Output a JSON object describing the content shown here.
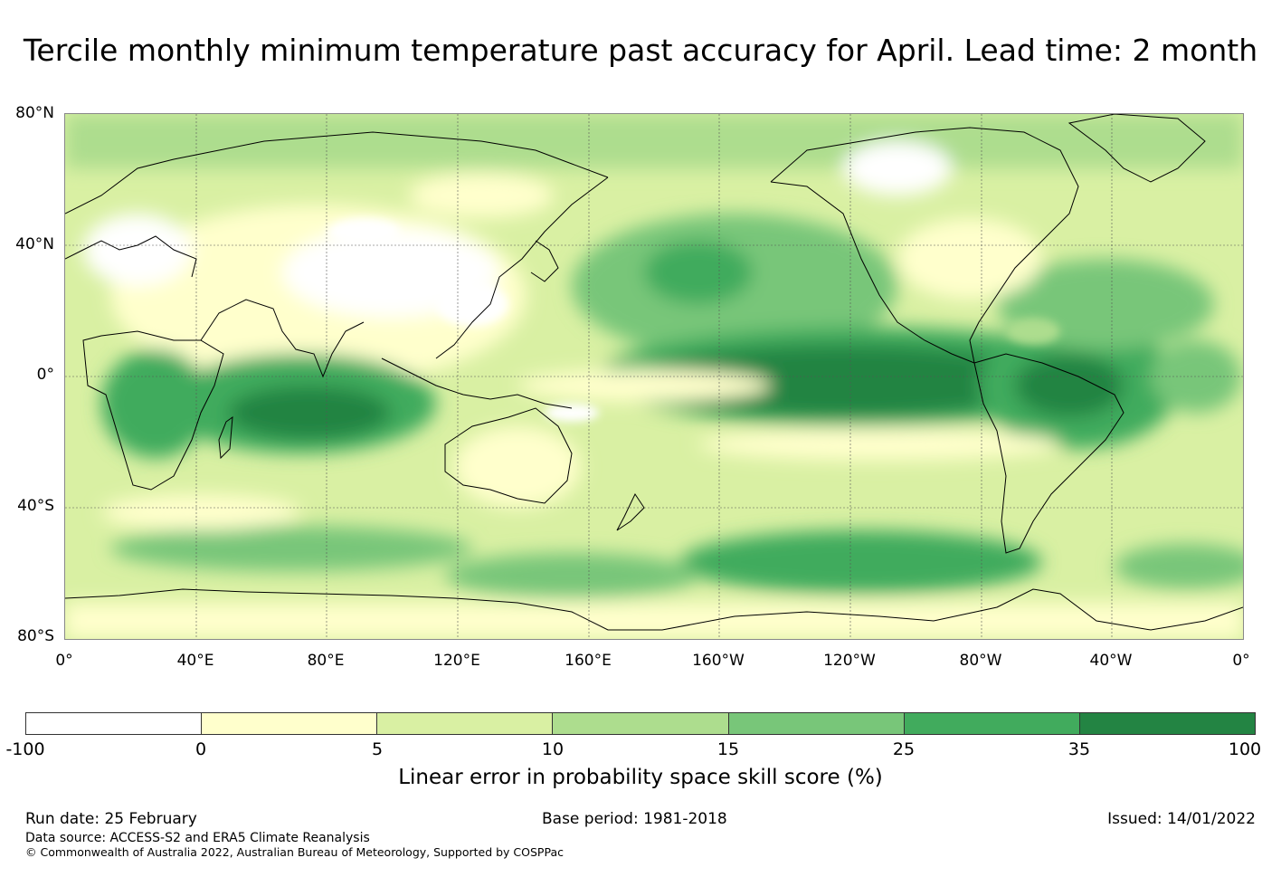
{
  "title": "Tercile monthly minimum temperature past accuracy for April. Lead time: 2 month",
  "map": {
    "lat_labels": [
      "80°N",
      "40°N",
      "0°",
      "40°S",
      "80°S"
    ],
    "lon_labels": [
      "0°",
      "40°E",
      "80°E",
      "120°E",
      "160°E",
      "160°W",
      "120°W",
      "80°W",
      "40°W",
      "0°"
    ]
  },
  "colorbar": {
    "ticks": [
      "-100",
      "0",
      "5",
      "10",
      "15",
      "25",
      "35",
      "100"
    ],
    "colors": [
      "#ffffff",
      "#ffffcc",
      "#d9f0a3",
      "#addd8e",
      "#78c679",
      "#41ab5d",
      "#238443"
    ],
    "label": "Linear error in probability space skill score (%)"
  },
  "footer": {
    "run_date": "Run date: 25 February",
    "base_period": "Base period: 1981-2018",
    "issued": "Issued: 14/01/2022",
    "data_source": "Data source: ACCESS-S2 and ERA5 Climate Reanalysis",
    "copyright": "© Commonwealth of Australia 2022, Australian Bureau of Meteorology, Supported by COSPPac"
  }
}
